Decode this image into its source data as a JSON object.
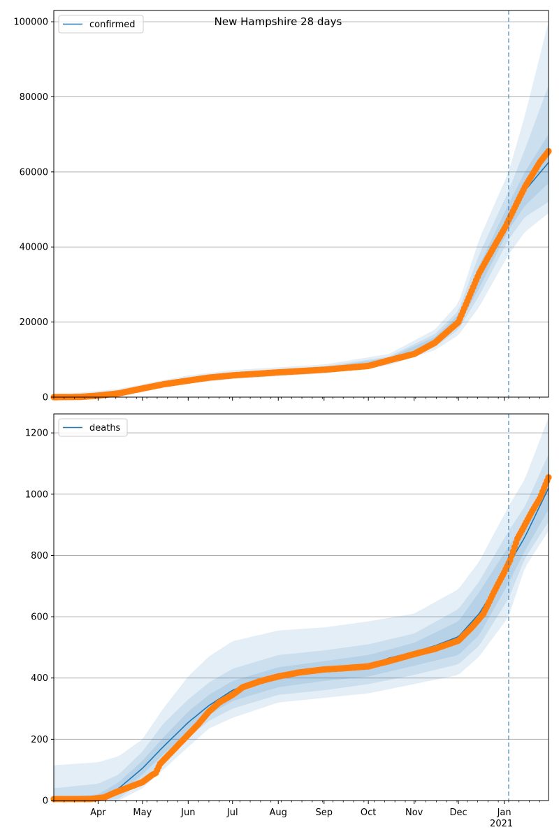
{
  "title": "New Hampshire 28 days",
  "colors": {
    "model": "#1f77b4",
    "observed": "#ff7f0e",
    "band": "#1f77b4",
    "grid": "#b0b0b0"
  },
  "x_tick_labels": [
    "Apr",
    "May",
    "Jun",
    "Jul",
    "Aug",
    "Sep",
    "Oct",
    "Nov",
    "Dec",
    "Jan"
  ],
  "x_year_label": "2021",
  "chart_data": [
    {
      "type": "line",
      "legend": "confirmed",
      "legend_position": "upper-left",
      "grid": "y",
      "x_range": [
        "2020-03-02",
        "2021-01-31"
      ],
      "forecast_start": "2021-01-04",
      "ylim": [
        0,
        103000
      ],
      "y_ticks": [
        0,
        20000,
        40000,
        60000,
        80000,
        100000
      ],
      "model_curve": [
        [
          "2020-03-02",
          0
        ],
        [
          "2020-03-20",
          50
        ],
        [
          "2020-04-01",
          300
        ],
        [
          "2020-04-15",
          1300
        ],
        [
          "2020-05-01",
          2400
        ],
        [
          "2020-05-15",
          3500
        ],
        [
          "2020-06-01",
          4400
        ],
        [
          "2020-06-15",
          5200
        ],
        [
          "2020-07-01",
          5700
        ],
        [
          "2020-08-01",
          6700
        ],
        [
          "2020-09-01",
          7400
        ],
        [
          "2020-10-01",
          8400
        ],
        [
          "2020-10-15",
          10000
        ],
        [
          "2020-11-01",
          12000
        ],
        [
          "2020-11-15",
          15000
        ],
        [
          "2020-12-01",
          20500
        ],
        [
          "2020-12-15",
          32000
        ],
        [
          "2021-01-01",
          46000
        ],
        [
          "2021-01-04",
          48000
        ],
        [
          "2021-01-15",
          55000
        ],
        [
          "2021-01-31",
          62500
        ]
      ],
      "bands": [
        [
          [
            "2020-03-02",
            0,
            500
          ],
          [
            "2020-04-15",
            500,
            2200
          ],
          [
            "2020-06-01",
            3600,
            5800
          ],
          [
            "2020-07-01",
            4800,
            7200
          ],
          [
            "2020-09-01",
            6300,
            8700
          ],
          [
            "2020-10-15",
            8500,
            11500
          ],
          [
            "2020-11-15",
            12500,
            18000
          ],
          [
            "2020-12-01",
            16500,
            25000
          ],
          [
            "2020-12-15",
            24000,
            42000
          ],
          [
            "2021-01-04",
            38000,
            60000
          ],
          [
            "2021-01-15",
            44000,
            75000
          ],
          [
            "2021-01-31",
            49000,
            100000
          ]
        ],
        [
          [
            "2020-03-02",
            0,
            300
          ],
          [
            "2020-04-15",
            800,
            1800
          ],
          [
            "2020-06-01",
            3900,
            5300
          ],
          [
            "2020-07-01",
            5100,
            6600
          ],
          [
            "2020-09-01",
            6700,
            8200
          ],
          [
            "2020-10-15",
            9000,
            10800
          ],
          [
            "2020-11-15",
            13300,
            16800
          ],
          [
            "2020-12-01",
            18000,
            23000
          ],
          [
            "2020-12-15",
            27000,
            38000
          ],
          [
            "2021-01-04",
            42000,
            55000
          ],
          [
            "2021-01-15",
            48000,
            66000
          ],
          [
            "2021-01-31",
            52000,
            83000
          ]
        ],
        [
          [
            "2020-03-02",
            0,
            150
          ],
          [
            "2020-04-15",
            1000,
            1600
          ],
          [
            "2020-06-01",
            4100,
            4900
          ],
          [
            "2020-07-01",
            5400,
            6100
          ],
          [
            "2020-09-01",
            7000,
            7800
          ],
          [
            "2020-10-15",
            9400,
            10500
          ],
          [
            "2020-11-15",
            14000,
            16000
          ],
          [
            "2020-12-01",
            19000,
            22000
          ],
          [
            "2020-12-15",
            29000,
            35000
          ],
          [
            "2021-01-04",
            44500,
            51500
          ],
          [
            "2021-01-15",
            51000,
            60000
          ],
          [
            "2021-01-31",
            57000,
            70000
          ]
        ]
      ],
      "observed": [
        [
          "2020-03-02",
          0
        ],
        [
          "2020-03-20",
          60
        ],
        [
          "2020-04-01",
          400
        ],
        [
          "2020-04-15",
          1000
        ],
        [
          "2020-05-01",
          2300
        ],
        [
          "2020-05-15",
          3400
        ],
        [
          "2020-06-01",
          4400
        ],
        [
          "2020-06-15",
          5200
        ],
        [
          "2020-07-01",
          5800
        ],
        [
          "2020-08-01",
          6600
        ],
        [
          "2020-09-01",
          7300
        ],
        [
          "2020-10-01",
          8300
        ],
        [
          "2020-10-15",
          9800
        ],
        [
          "2020-11-01",
          11500
        ],
        [
          "2020-11-15",
          14500
        ],
        [
          "2020-12-01",
          20000
        ],
        [
          "2020-12-15",
          33000
        ],
        [
          "2020-12-25",
          40000
        ],
        [
          "2021-01-02",
          45500
        ],
        [
          "2021-01-05",
          48000
        ],
        [
          "2021-01-15",
          56000
        ],
        [
          "2021-01-25",
          62500
        ],
        [
          "2021-01-31",
          65500
        ]
      ]
    },
    {
      "type": "line",
      "legend": "deaths",
      "legend_position": "upper-left",
      "grid": "y",
      "x_range": [
        "2020-03-02",
        "2021-01-31"
      ],
      "forecast_start": "2021-01-04",
      "ylim": [
        0,
        1262
      ],
      "y_ticks": [
        0,
        200,
        400,
        600,
        800,
        1000,
        1200
      ],
      "model_curve": [
        [
          "2020-03-02",
          0
        ],
        [
          "2020-04-01",
          3
        ],
        [
          "2020-04-15",
          40
        ],
        [
          "2020-05-01",
          105
        ],
        [
          "2020-05-15",
          175
        ],
        [
          "2020-06-01",
          255
        ],
        [
          "2020-06-15",
          310
        ],
        [
          "2020-07-01",
          360
        ],
        [
          "2020-07-15",
          385
        ],
        [
          "2020-08-01",
          405
        ],
        [
          "2020-09-01",
          425
        ],
        [
          "2020-10-01",
          440
        ],
        [
          "2020-10-15",
          465
        ],
        [
          "2020-11-01",
          485
        ],
        [
          "2020-11-15",
          505
        ],
        [
          "2020-12-01",
          535
        ],
        [
          "2020-12-15",
          610
        ],
        [
          "2021-01-01",
          740
        ],
        [
          "2021-01-04",
          770
        ],
        [
          "2021-01-15",
          860
        ],
        [
          "2021-01-31",
          1020
        ]
      ],
      "bands": [
        [
          [
            "2020-03-02",
            0,
            115
          ],
          [
            "2020-04-01",
            0,
            125
          ],
          [
            "2020-04-15",
            0,
            145
          ],
          [
            "2020-05-01",
            40,
            200
          ],
          [
            "2020-05-15",
            100,
            300
          ],
          [
            "2020-06-01",
            175,
            405
          ],
          [
            "2020-06-15",
            235,
            470
          ],
          [
            "2020-07-01",
            270,
            520
          ],
          [
            "2020-08-01",
            320,
            555
          ],
          [
            "2020-09-01",
            335,
            565
          ],
          [
            "2020-10-01",
            350,
            585
          ],
          [
            "2020-11-01",
            380,
            610
          ],
          [
            "2020-12-01",
            410,
            690
          ],
          [
            "2020-12-15",
            470,
            780
          ],
          [
            "2021-01-04",
            600,
            960
          ],
          [
            "2021-01-15",
            760,
            1050
          ],
          [
            "2021-01-31",
            880,
            1250
          ]
        ],
        [
          [
            "2020-03-02",
            0,
            40
          ],
          [
            "2020-04-01",
            0,
            55
          ],
          [
            "2020-04-15",
            5,
            85
          ],
          [
            "2020-05-01",
            65,
            160
          ],
          [
            "2020-05-15",
            130,
            250
          ],
          [
            "2020-06-01",
            205,
            330
          ],
          [
            "2020-06-15",
            260,
            385
          ],
          [
            "2020-07-01",
            300,
            430
          ],
          [
            "2020-08-01",
            345,
            475
          ],
          [
            "2020-09-01",
            360,
            490
          ],
          [
            "2020-10-01",
            380,
            510
          ],
          [
            "2020-11-01",
            410,
            545
          ],
          [
            "2020-12-01",
            445,
            625
          ],
          [
            "2020-12-15",
            505,
            715
          ],
          [
            "2021-01-04",
            660,
            880
          ],
          [
            "2021-01-15",
            790,
            960
          ],
          [
            "2021-01-31",
            910,
            1130
          ]
        ],
        [
          [
            "2020-03-02",
            0,
            10
          ],
          [
            "2020-04-01",
            0,
            20
          ],
          [
            "2020-04-15",
            20,
            60
          ],
          [
            "2020-05-01",
            85,
            130
          ],
          [
            "2020-05-15",
            150,
            205
          ],
          [
            "2020-06-01",
            225,
            290
          ],
          [
            "2020-06-15",
            280,
            345
          ],
          [
            "2020-07-01",
            325,
            390
          ],
          [
            "2020-08-01",
            370,
            435
          ],
          [
            "2020-09-01",
            390,
            455
          ],
          [
            "2020-10-01",
            405,
            475
          ],
          [
            "2020-11-01",
            440,
            515
          ],
          [
            "2020-12-01",
            475,
            585
          ],
          [
            "2020-12-15",
            540,
            680
          ],
          [
            "2021-01-04",
            710,
            830
          ],
          [
            "2021-01-15",
            815,
            905
          ],
          [
            "2021-01-31",
            950,
            1070
          ]
        ]
      ],
      "observed": [
        [
          "2020-03-02",
          5
        ],
        [
          "2020-03-15",
          5
        ],
        [
          "2020-03-27",
          5
        ],
        [
          "2020-04-05",
          10
        ],
        [
          "2020-04-12",
          25
        ],
        [
          "2020-04-20",
          40
        ],
        [
          "2020-05-01",
          60
        ],
        [
          "2020-05-08",
          85
        ],
        [
          "2020-05-10",
          90
        ],
        [
          "2020-05-13",
          120
        ],
        [
          "2020-05-20",
          155
        ],
        [
          "2020-05-25",
          180
        ],
        [
          "2020-06-01",
          215
        ],
        [
          "2020-06-08",
          250
        ],
        [
          "2020-06-15",
          290
        ],
        [
          "2020-06-22",
          320
        ],
        [
          "2020-07-01",
          345
        ],
        [
          "2020-07-08",
          370
        ],
        [
          "2020-07-20",
          390
        ],
        [
          "2020-08-01",
          405
        ],
        [
          "2020-08-15",
          418
        ],
        [
          "2020-09-01",
          428
        ],
        [
          "2020-09-15",
          432
        ],
        [
          "2020-10-01",
          438
        ],
        [
          "2020-10-15",
          455
        ],
        [
          "2020-11-01",
          478
        ],
        [
          "2020-11-15",
          495
        ],
        [
          "2020-12-01",
          522
        ],
        [
          "2020-12-10",
          565
        ],
        [
          "2020-12-18",
          610
        ],
        [
          "2020-12-25",
          680
        ],
        [
          "2021-01-01",
          745
        ],
        [
          "2021-01-05",
          785
        ],
        [
          "2021-01-10",
          855
        ],
        [
          "2021-01-15",
          900
        ],
        [
          "2021-01-20",
          945
        ],
        [
          "2021-01-25",
          985
        ],
        [
          "2021-01-31",
          1055
        ]
      ]
    }
  ]
}
